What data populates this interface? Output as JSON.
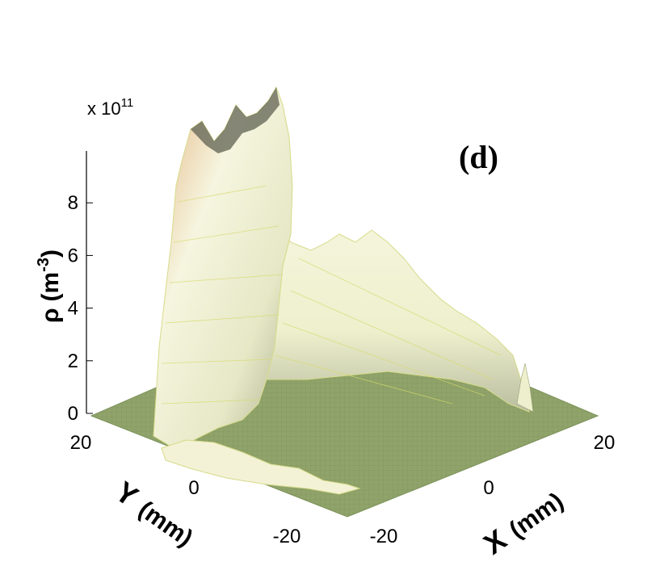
{
  "chart_data": {
    "type": "surface",
    "panel_label": "(d)",
    "zlabel_symbol": "ρ",
    "zlabel_unit": "(m",
    "zlabel_unit_exp": "-3",
    "zlabel_unit_close": ")",
    "zscale_prefix": "x 10",
    "zscale_exp": "11",
    "zticks": [
      "0",
      "2",
      "4",
      "6",
      "8"
    ],
    "zlim": [
      0,
      10
    ],
    "xlabel_letter": "X",
    "xlabel_unit": "(mm)",
    "ylabel_letter": "Y",
    "ylabel_unit": "(mm)",
    "xticks": [
      "-20",
      "0",
      "20"
    ],
    "yticks": [
      "-20",
      "0",
      "20"
    ],
    "xlim": [
      -25,
      25
    ],
    "ylim": [
      -25,
      25
    ],
    "ridges": [
      {
        "along": "x",
        "y": 22,
        "peak_x": -18,
        "peak_z": 9.5
      },
      {
        "along": "y",
        "x": -22,
        "peak_y": 18,
        "peak_z": 9.0
      }
    ],
    "colors": {
      "floor": "#8fa36a",
      "mesh": "#e8e87a",
      "surface_light": "#f4f3d8",
      "surface_shadow": "#6f7163",
      "edge_red": "#c43a2a"
    }
  }
}
